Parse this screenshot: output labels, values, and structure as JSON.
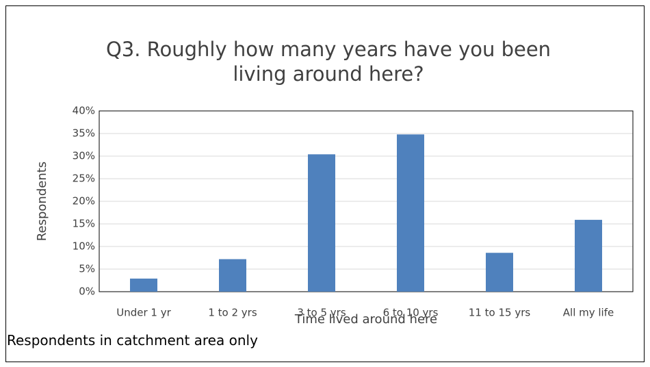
{
  "chart_data": {
    "type": "bar",
    "title": "Q3. Roughly how many years have you been living around here?",
    "x_label": "Time lived around here",
    "y_label": "Respondents",
    "note": "Respondents in catchment area only",
    "categories": [
      "Under 1 yr",
      "1 to 2 yrs",
      "3 to 5 yrs",
      "6 to 10 yrs",
      "11 to 15 yrs",
      "All my life"
    ],
    "values": [
      2.9,
      7.2,
      30.4,
      34.8,
      8.6,
      15.9
    ],
    "color": "#4f81bd",
    "ylim": [
      0,
      40
    ],
    "yticks": [
      {
        "value": 0,
        "label": "0%"
      },
      {
        "value": 5,
        "label": "5%"
      },
      {
        "value": 10,
        "label": "10%"
      },
      {
        "value": 15,
        "label": "15%"
      },
      {
        "value": 20,
        "label": "20%"
      },
      {
        "value": 25,
        "label": "25%"
      },
      {
        "value": 30,
        "label": "30%"
      },
      {
        "value": 35,
        "label": "35%"
      },
      {
        "value": 40,
        "label": "40%"
      }
    ],
    "grid": true
  }
}
